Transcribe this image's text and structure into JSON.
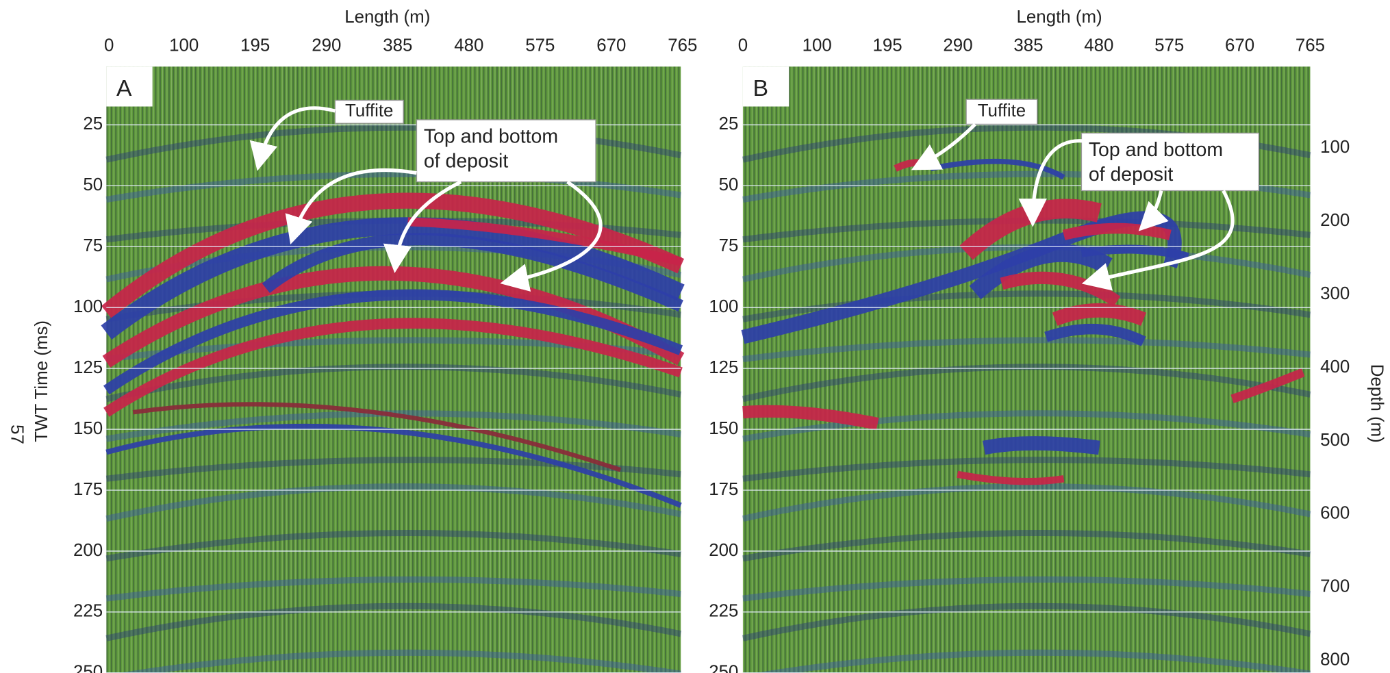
{
  "page_number": "57",
  "panels": [
    {
      "label": "A",
      "x_axis_title": "Length (m)",
      "x_ticks": [
        "0",
        "100",
        "195",
        "290",
        "385",
        "480",
        "575",
        "670",
        "765"
      ],
      "y_axis_title": "TWT Time (ms)",
      "y_ticks": [
        "25",
        "50",
        "75",
        "100",
        "125",
        "150",
        "175",
        "200",
        "225",
        "250"
      ],
      "annotations": {
        "tuffite": "Tuffite",
        "deposit": [
          "Top and bottom",
          "of deposit"
        ]
      }
    },
    {
      "label": "B",
      "x_axis_title": "Length (m)",
      "x_ticks": [
        "0",
        "100",
        "195",
        "290",
        "385",
        "480",
        "575",
        "670",
        "765"
      ],
      "y_ticks": [
        "25",
        "50",
        "75",
        "100",
        "125",
        "150",
        "175",
        "200",
        "225",
        "250"
      ],
      "y2_axis_title": "Depth (m)",
      "y2_ticks": [
        "100",
        "200",
        "300",
        "400",
        "500",
        "600",
        "700",
        "800"
      ],
      "annotations": {
        "tuffite": "Tuffite",
        "deposit": [
          "Top and bottom",
          "of deposit"
        ]
      }
    }
  ]
}
